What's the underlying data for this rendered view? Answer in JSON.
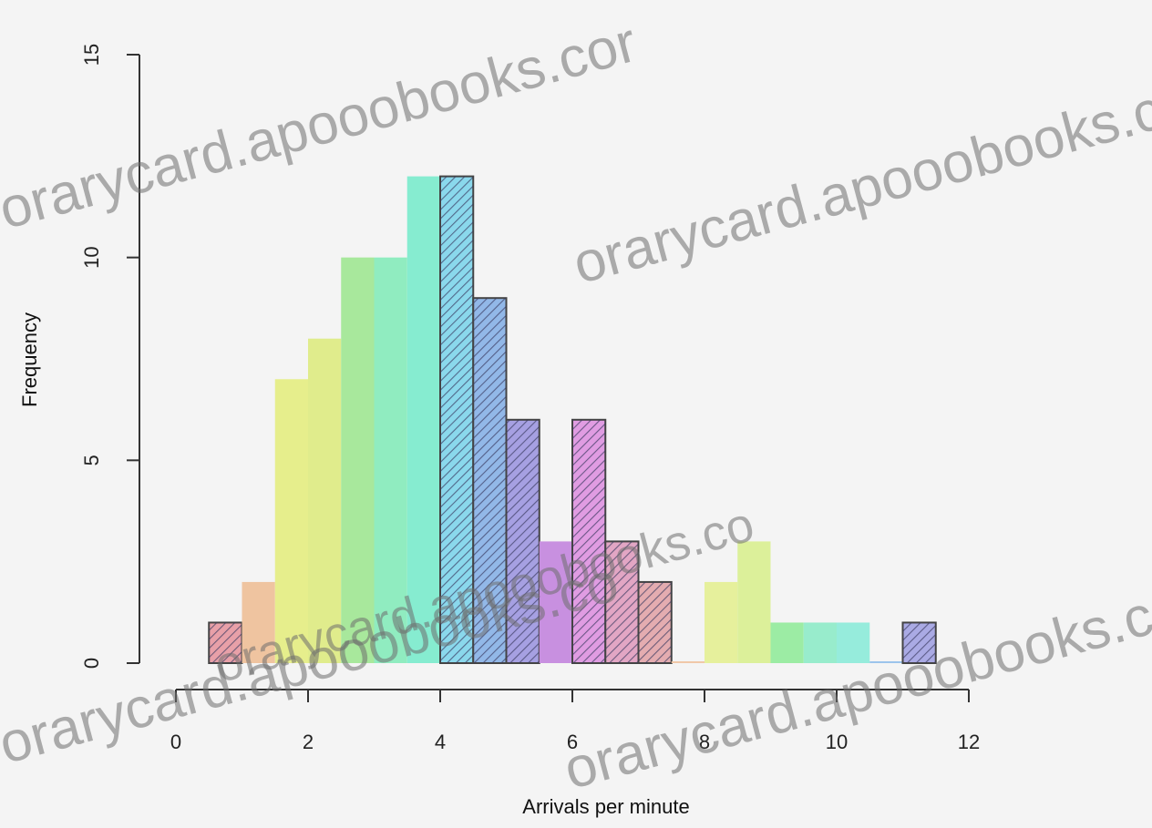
{
  "chart_data": {
    "type": "bar",
    "title": "",
    "xlabel": "Arrivals per minute",
    "ylabel": "Frequency",
    "xlim": [
      0,
      12
    ],
    "ylim": [
      0,
      15
    ],
    "x_ticks": [
      "0",
      "2",
      "4",
      "6",
      "8",
      "10",
      "12"
    ],
    "y_ticks": [
      "0",
      "5",
      "10",
      "15"
    ],
    "grid": false,
    "bin_width": 0.5,
    "bins": [
      {
        "start": 0.5,
        "end": 1.0,
        "value": 1,
        "color": "#e8a0a8",
        "hatch": true
      },
      {
        "start": 1.0,
        "end": 1.5,
        "value": 2,
        "color": "#efc4a0",
        "hatch": false
      },
      {
        "start": 1.5,
        "end": 2.0,
        "value": 7,
        "color": "#e6ee8c",
        "hatch": false
      },
      {
        "start": 2.0,
        "end": 2.5,
        "value": 8,
        "color": "#e0ec8c",
        "hatch": false
      },
      {
        "start": 2.5,
        "end": 3.0,
        "value": 10,
        "color": "#a8e89c",
        "hatch": false
      },
      {
        "start": 3.0,
        "end": 3.5,
        "value": 10,
        "color": "#90ecc0",
        "hatch": false
      },
      {
        "start": 3.5,
        "end": 4.0,
        "value": 12,
        "color": "#86ecd0",
        "hatch": false
      },
      {
        "start": 4.0,
        "end": 4.5,
        "value": 12,
        "color": "#8ad8ec",
        "hatch": true
      },
      {
        "start": 4.5,
        "end": 5.0,
        "value": 9,
        "color": "#92b8e8",
        "hatch": true
      },
      {
        "start": 5.0,
        "end": 5.5,
        "value": 6,
        "color": "#a6a0e2",
        "hatch": true
      },
      {
        "start": 5.5,
        "end": 6.0,
        "value": 3,
        "color": "#c890e0",
        "hatch": false
      },
      {
        "start": 6.0,
        "end": 6.5,
        "value": 6,
        "color": "#e09ce2",
        "hatch": true
      },
      {
        "start": 6.5,
        "end": 7.0,
        "value": 3,
        "color": "#e2a6c4",
        "hatch": true
      },
      {
        "start": 7.0,
        "end": 7.5,
        "value": 2,
        "color": "#e4acb0",
        "hatch": true
      },
      {
        "start": 7.5,
        "end": 8.0,
        "value": 0,
        "color": "#f0c8a8",
        "hatch": false
      },
      {
        "start": 8.0,
        "end": 8.5,
        "value": 2,
        "color": "#e6f09c",
        "hatch": false
      },
      {
        "start": 8.5,
        "end": 9.0,
        "value": 3,
        "color": "#dcf09a",
        "hatch": false
      },
      {
        "start": 9.0,
        "end": 9.5,
        "value": 1,
        "color": "#9ceca4",
        "hatch": false
      },
      {
        "start": 9.5,
        "end": 10.0,
        "value": 1,
        "color": "#98eccc",
        "hatch": false
      },
      {
        "start": 10.0,
        "end": 10.5,
        "value": 1,
        "color": "#96ecdc",
        "hatch": false
      },
      {
        "start": 10.5,
        "end": 11.0,
        "value": 0,
        "color": "#9cc4ec",
        "hatch": false
      },
      {
        "start": 11.0,
        "end": 11.5,
        "value": 1,
        "color": "#aaaae4",
        "hatch": true
      }
    ]
  },
  "watermarks": [
    "orarycard.apooobooks.cor",
    "orarycard.apooobooks.co",
    "orarycard.apooobooks.co",
    "orarycard.apooobooks.co",
    "orarycard.apooobooks.co"
  ]
}
